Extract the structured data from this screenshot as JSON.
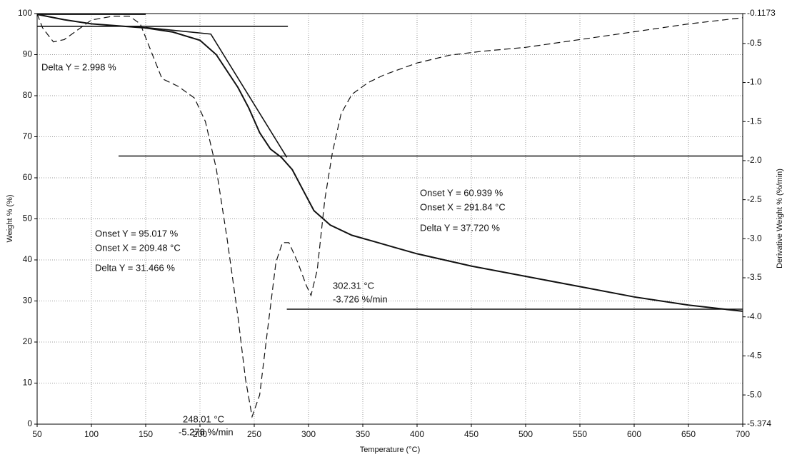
{
  "chart_data": {
    "type": "line",
    "xlabel": "Temperature (°C)",
    "ylabel": "Weight % (%)",
    "y2label": "Derivative Weight % (%/min)",
    "xlim": [
      50,
      700
    ],
    "xticks": [
      50,
      100,
      150,
      200,
      250,
      300,
      350,
      400,
      450,
      500,
      550,
      600,
      650,
      700
    ],
    "ylim": [
      0,
      100
    ],
    "yticks": [
      0,
      10,
      20,
      30,
      40,
      50,
      60,
      70,
      80,
      90,
      100
    ],
    "y2lim": [
      -5.374,
      -0.1173
    ],
    "y2ticks": [
      -5.374,
      {
        "value": -5,
        "label": "-5.0"
      },
      -4.5,
      {
        "value": -4,
        "label": "-4.0"
      },
      -3.5,
      {
        "value": -3,
        "label": "-3.0"
      },
      -2.5,
      {
        "value": -2,
        "label": "-2.0"
      },
      -1.5,
      {
        "value": -1,
        "label": "-1.0"
      },
      -0.5,
      -0.1173
    ],
    "grid": true,
    "series": [
      {
        "color": "#111111",
        "line_style": "solid",
        "x": [
          50,
          75,
          100,
          125,
          150,
          175,
          200,
          215,
          225,
          235,
          245,
          255,
          265,
          275,
          285,
          295,
          305,
          320,
          340,
          360,
          380,
          400,
          450,
          500,
          550,
          600,
          650,
          700
        ],
        "values": [
          99.8,
          98.5,
          97.5,
          97,
          96.5,
          95.5,
          93.5,
          90,
          86,
          82,
          77,
          71,
          67,
          65,
          62,
          57,
          52,
          48.5,
          46,
          44.5,
          43,
          41.5,
          38.5,
          36,
          33.5,
          31,
          29,
          27.5
        ]
      },
      {
        "color": "#111111",
        "line_style": "dashed",
        "axis": "y2",
        "x": [
          50,
          55,
          65,
          75,
          90,
          100,
          120,
          135,
          145,
          155,
          165,
          180,
          195,
          205,
          215,
          225,
          235,
          242,
          248.01,
          255,
          262,
          270,
          276,
          282,
          290,
          298,
          302.31,
          308,
          315,
          322,
          330,
          340,
          355,
          370,
          400,
          430,
          460,
          500,
          550,
          600,
          650,
          700
        ],
        "values": [
          -0.12,
          -0.3,
          -0.48,
          -0.45,
          -0.3,
          -0.2,
          -0.15,
          -0.15,
          -0.25,
          -0.6,
          -0.95,
          -1.05,
          -1.2,
          -1.5,
          -2.1,
          -3.0,
          -4.0,
          -4.8,
          -5.278,
          -5.0,
          -4.2,
          -3.3,
          -3.05,
          -3.05,
          -3.3,
          -3.6,
          -3.726,
          -3.4,
          -2.5,
          -1.9,
          -1.4,
          -1.15,
          -1.0,
          -0.9,
          -0.75,
          -0.65,
          -0.6,
          -0.55,
          -0.45,
          -0.35,
          -0.25,
          -0.17
        ]
      }
    ],
    "guide_lines": [
      {
        "x": [
          50,
          150
        ],
        "values": [
          99.8,
          99.8
        ]
      },
      {
        "x": [
          50,
          281
        ],
        "values": [
          96.9,
          96.9
        ]
      },
      {
        "x": [
          150,
          210,
          280
        ],
        "values": [
          96.6,
          95.017,
          65
        ]
      },
      {
        "x": [
          125,
          700
        ],
        "values": [
          65.3,
          65.3
        ]
      },
      {
        "x": [
          280,
          700
        ],
        "values": [
          28,
          28
        ]
      }
    ],
    "annotations": [
      "Delta Y = 2.998 %",
      "Onset Y = 95.017 %",
      "Onset X = 209.48 °C",
      "Delta Y = 31.466 %",
      "Onset Y = 60.939 %",
      "Onset X = 291.84 °C",
      "Delta Y = 37.720 %",
      "302.31 °C",
      "-3.726 %/min",
      "248.01 °C",
      "-5.278 %/min"
    ]
  }
}
